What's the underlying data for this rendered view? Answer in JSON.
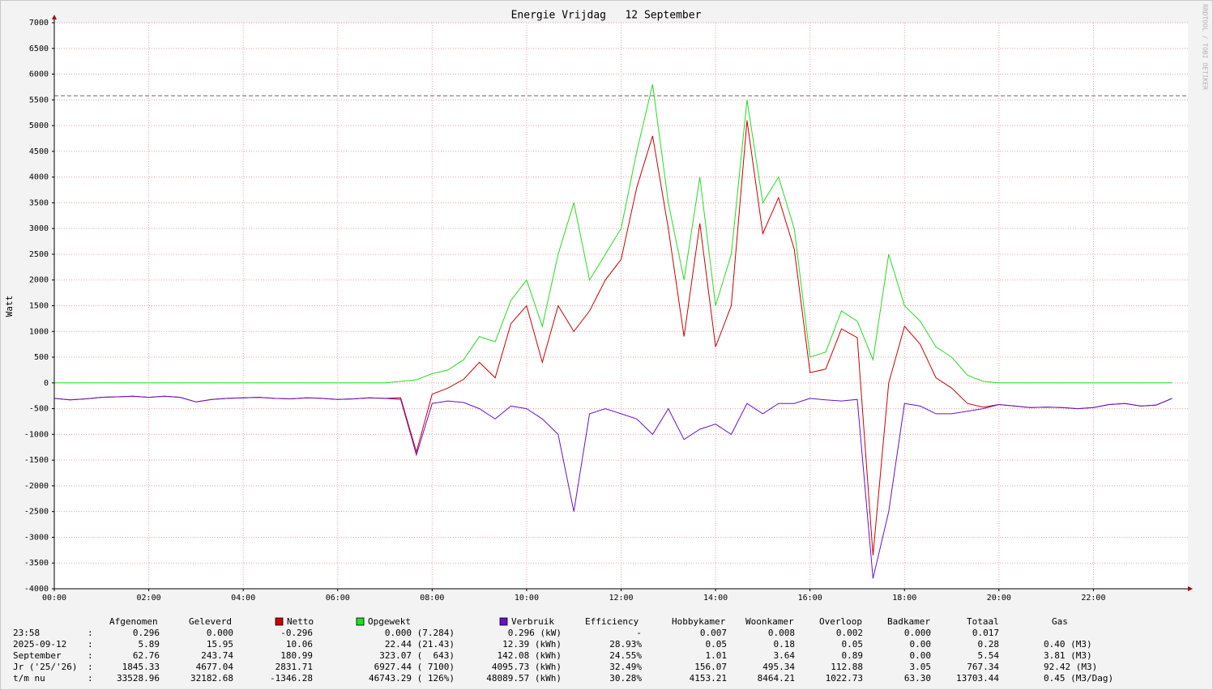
{
  "chart_data": {
    "type": "line",
    "title": "Energie Vrijdag   12 September",
    "y_label": "Watt",
    "watermark": "RRDTOOL / TOBI OETIKER",
    "xlim": [
      0,
      1440
    ],
    "xticks": [
      {
        "value": 0,
        "label": "00:00"
      },
      {
        "value": 120,
        "label": "02:00"
      },
      {
        "value": 240,
        "label": "04:00"
      },
      {
        "value": 360,
        "label": "06:00"
      },
      {
        "value": 480,
        "label": "08:00"
      },
      {
        "value": 600,
        "label": "10:00"
      },
      {
        "value": 720,
        "label": "12:00"
      },
      {
        "value": 840,
        "label": "14:00"
      },
      {
        "value": 960,
        "label": "16:00"
      },
      {
        "value": 1080,
        "label": "18:00"
      },
      {
        "value": 1200,
        "label": "20:00"
      },
      {
        "value": 1320,
        "label": "22:00"
      }
    ],
    "ylim": [
      -4000,
      7000
    ],
    "yticks": [
      -4000,
      -3500,
      -3000,
      -2500,
      -2000,
      -1500,
      -1000,
      -500,
      0,
      500,
      1000,
      1500,
      2000,
      2500,
      3000,
      3500,
      4000,
      4500,
      5000,
      5500,
      6000,
      6500,
      7000
    ],
    "grid": true,
    "reference_line": {
      "value": 5580,
      "color": "#666666",
      "dashed": true
    },
    "x": [
      0,
      20,
      40,
      60,
      80,
      100,
      120,
      140,
      160,
      180,
      200,
      220,
      240,
      260,
      280,
      300,
      320,
      340,
      360,
      380,
      400,
      420,
      440,
      460,
      480,
      500,
      520,
      540,
      560,
      580,
      600,
      620,
      640,
      660,
      680,
      700,
      720,
      740,
      760,
      780,
      800,
      820,
      840,
      860,
      880,
      900,
      920,
      940,
      960,
      980,
      1000,
      1020,
      1040,
      1060,
      1080,
      1100,
      1120,
      1140,
      1160,
      1180,
      1200,
      1220,
      1240,
      1260,
      1280,
      1300,
      1320,
      1340,
      1360,
      1380,
      1400,
      1420
    ],
    "series": [
      {
        "name": "Netto",
        "color": "#cc0000",
        "values": [
          -300,
          -330,
          -310,
          -280,
          -270,
          -260,
          -280,
          -260,
          -280,
          -370,
          -320,
          -300,
          -290,
          -280,
          -300,
          -310,
          -290,
          -300,
          -320,
          -310,
          -290,
          -300,
          -290,
          -1340,
          -220,
          -100,
          70,
          400,
          100,
          1150,
          1500,
          400,
          1500,
          1000,
          1400,
          2000,
          2400,
          3800,
          4800,
          3000,
          900,
          3100,
          700,
          1500,
          5100,
          2900,
          3600,
          2600,
          200,
          270,
          1050,
          880,
          -3350,
          0,
          1100,
          750,
          100,
          -100,
          -400,
          -470,
          -420,
          -450,
          -480,
          -470,
          -480,
          -500,
          -480,
          -420,
          -400,
          -450,
          -430,
          -300
        ]
      },
      {
        "name": "Opgewekt",
        "color": "#22dd22",
        "values": [
          0,
          0,
          0,
          0,
          0,
          0,
          0,
          0,
          0,
          0,
          0,
          0,
          0,
          0,
          0,
          0,
          0,
          0,
          0,
          0,
          0,
          0,
          30,
          60,
          180,
          250,
          450,
          900,
          800,
          1600,
          2000,
          1100,
          2500,
          3500,
          2000,
          2500,
          3000,
          4500,
          5800,
          3500,
          2000,
          4000,
          1500,
          2500,
          5500,
          3500,
          4000,
          3000,
          500,
          600,
          1400,
          1200,
          450,
          2500,
          1500,
          1200,
          700,
          500,
          150,
          30,
          0,
          0,
          0,
          0,
          0,
          0,
          0,
          0,
          0,
          0,
          0,
          0
        ]
      },
      {
        "name": "Verbruik",
        "color": "#6611cc",
        "values": [
          -300,
          -330,
          -310,
          -280,
          -270,
          -260,
          -280,
          -260,
          -280,
          -370,
          -320,
          -300,
          -290,
          -280,
          -300,
          -310,
          -290,
          -300,
          -320,
          -310,
          -290,
          -300,
          -320,
          -1400,
          -400,
          -350,
          -380,
          -500,
          -700,
          -450,
          -500,
          -700,
          -1000,
          -2500,
          -600,
          -500,
          -600,
          -700,
          -1000,
          -500,
          -1100,
          -900,
          -800,
          -1000,
          -400,
          -600,
          -400,
          -400,
          -300,
          -330,
          -350,
          -320,
          -3800,
          -2500,
          -400,
          -450,
          -600,
          -600,
          -550,
          -500,
          -420,
          -450,
          -480,
          -470,
          -480,
          -500,
          -480,
          -420,
          -400,
          -450,
          -430,
          -300
        ]
      }
    ]
  },
  "table": {
    "columns": [
      "Afgenomen",
      "Geleverd",
      "Efficiency",
      "Hobbykamer",
      "Woonkamer",
      "Overloop",
      "Badkamer",
      "Totaal",
      "Gas"
    ],
    "separator": ":",
    "rows": [
      {
        "label": "23:58",
        "cells": [
          "0.296",
          "0.000",
          "-0.296",
          "0.000 (7.284)",
          "0.296 (kW)",
          "-",
          "0.007",
          "0.008",
          "0.002",
          "0.000",
          "0.017"
        ]
      },
      {
        "label": "2025-09-12",
        "cells": [
          "5.89",
          "15.95",
          "10.06",
          "22.44 (21.43)",
          "12.39 (kWh)",
          "28.93%",
          "0.05",
          "0.18",
          "0.05",
          "0.00",
          "0.28",
          "0.40 (M3)"
        ]
      },
      {
        "label": "September",
        "cells": [
          "62.76",
          "243.74",
          "180.99",
          "323.07 (  643)",
          "142.08 (kWh)",
          "24.55%",
          "1.01",
          "3.64",
          "0.89",
          "0.00",
          "5.54",
          "3.81 (M3)"
        ]
      },
      {
        "label": "Jr ('25/'26)",
        "cells": [
          "1845.33",
          "4677.04",
          "2831.71",
          "6927.44 ( 7100)",
          "4095.73 (kWh)",
          "32.49%",
          "156.07",
          "495.34",
          "112.88",
          "3.05",
          "767.34",
          "92.42 (M3)"
        ]
      },
      {
        "label": "t/m nu",
        "cells": [
          "33528.96",
          "32182.68",
          "-1346.28",
          "46743.29 ( 126%)",
          "48089.57 (kWh)",
          "30.28%",
          "4153.21",
          "8464.21",
          "1022.73",
          "63.30",
          "13703.44",
          "0.45 (M3/Dag)"
        ]
      }
    ]
  }
}
